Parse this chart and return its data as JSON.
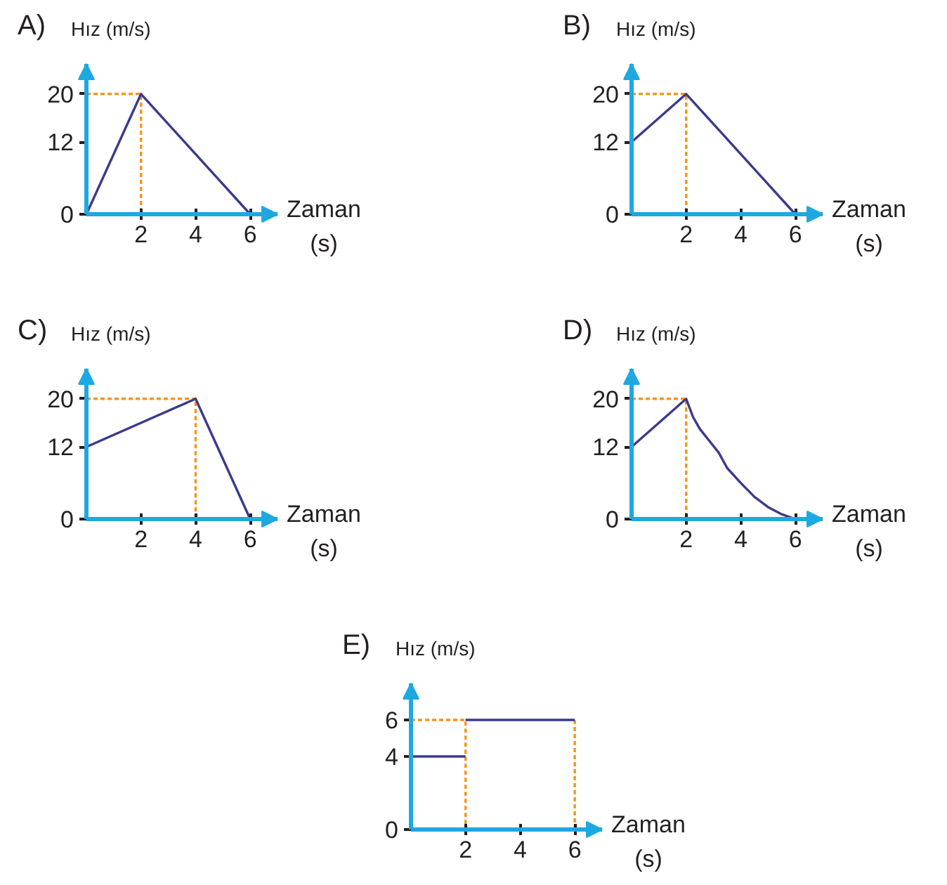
{
  "chart_data": [
    {
      "type": "line",
      "title": "A)",
      "ylabel": "Hız (m/s)",
      "xlabel": "Zaman\n(s)",
      "xlim": [
        0,
        7
      ],
      "ylim": [
        0,
        25
      ],
      "xticks": [
        2,
        4,
        6
      ],
      "yticks": [
        0,
        12,
        20
      ],
      "grid": false,
      "series": [
        {
          "color": "#f7941d",
          "line_style": "dotted",
          "x": [
            0,
            2,
            2
          ],
          "values": [
            20,
            20,
            0
          ]
        },
        {
          "color": "#3a3a8c",
          "x": [
            0,
            2,
            6
          ],
          "values": [
            0,
            20,
            0
          ]
        }
      ]
    },
    {
      "type": "line",
      "title": "B)",
      "ylabel": "Hız (m/s)",
      "xlabel": "Zaman\n(s)",
      "xlim": [
        0,
        7
      ],
      "ylim": [
        0,
        25
      ],
      "xticks": [
        2,
        4,
        6
      ],
      "yticks": [
        0,
        12,
        20
      ],
      "grid": false,
      "series": [
        {
          "color": "#f7941d",
          "line_style": "dotted",
          "x": [
            0,
            2,
            2
          ],
          "values": [
            20,
            20,
            0
          ]
        },
        {
          "color": "#3a3a8c",
          "x": [
            0,
            2,
            6
          ],
          "values": [
            12,
            20,
            0
          ]
        }
      ]
    },
    {
      "type": "line",
      "title": "C)",
      "ylabel": "Hız (m/s)",
      "xlabel": "Zaman\n(s)",
      "xlim": [
        0,
        7
      ],
      "ylim": [
        0,
        25
      ],
      "xticks": [
        2,
        4,
        6
      ],
      "yticks": [
        0,
        12,
        20
      ],
      "grid": false,
      "series": [
        {
          "color": "#f7941d",
          "line_style": "dotted",
          "x": [
            0,
            4,
            4
          ],
          "values": [
            20,
            20,
            0
          ]
        },
        {
          "color": "#3a3a8c",
          "x": [
            0,
            4,
            6
          ],
          "values": [
            12,
            20,
            0
          ]
        }
      ]
    },
    {
      "type": "line",
      "title": "D)",
      "ylabel": "Hız (m/s)",
      "xlabel": "Zaman\n(s)",
      "xlim": [
        0,
        7
      ],
      "ylim": [
        0,
        25
      ],
      "xticks": [
        2,
        4,
        6
      ],
      "yticks": [
        0,
        12,
        20
      ],
      "grid": false,
      "series": [
        {
          "color": "#f7941d",
          "line_style": "dotted",
          "x": [
            0,
            2,
            2
          ],
          "values": [
            20,
            20,
            0
          ]
        },
        {
          "color": "#3a3a8c",
          "x": [
            0,
            2,
            2.25,
            2.5,
            2.85,
            3.2,
            3.5,
            4,
            4.5,
            5,
            5.5,
            6
          ],
          "values": [
            12,
            20,
            17,
            15,
            13,
            11,
            8.5,
            6,
            3.7,
            2,
            0.8,
            0
          ]
        }
      ]
    },
    {
      "type": "line",
      "title": "E)",
      "ylabel": "Hız (m/s)",
      "xlabel": "Zaman\n(s)",
      "xlim": [
        0,
        7
      ],
      "ylim": [
        0,
        8
      ],
      "xticks": [
        2,
        4,
        6
      ],
      "yticks": [
        0,
        4,
        6
      ],
      "grid": false,
      "series": [
        {
          "color": "#f7941d",
          "line_style": "dotted",
          "x": [
            0,
            2,
            2
          ],
          "values": [
            6,
            6,
            0
          ]
        },
        {
          "color": "#f7941d",
          "line_style": "dotted",
          "x": [
            6,
            6
          ],
          "values": [
            6,
            0
          ]
        },
        {
          "color": "#3a3a8c",
          "x": [
            0,
            2
          ],
          "values": [
            4,
            4
          ]
        },
        {
          "color": "#3a3a8c",
          "x": [
            2,
            6
          ],
          "values": [
            6,
            6
          ]
        }
      ]
    }
  ]
}
